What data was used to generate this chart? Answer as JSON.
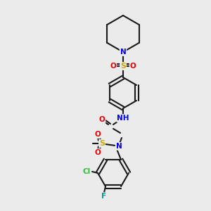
{
  "bg_color": "#ebebeb",
  "bond_color": "#1a1a1a",
  "atom_colors": {
    "N": "#0000ee",
    "O": "#ee0000",
    "S": "#ccaa00",
    "Cl": "#33bb33",
    "F": "#009999",
    "C": "#1a1a1a",
    "H": "#888888"
  },
  "figsize": [
    3.0,
    3.0
  ],
  "dpi": 100
}
